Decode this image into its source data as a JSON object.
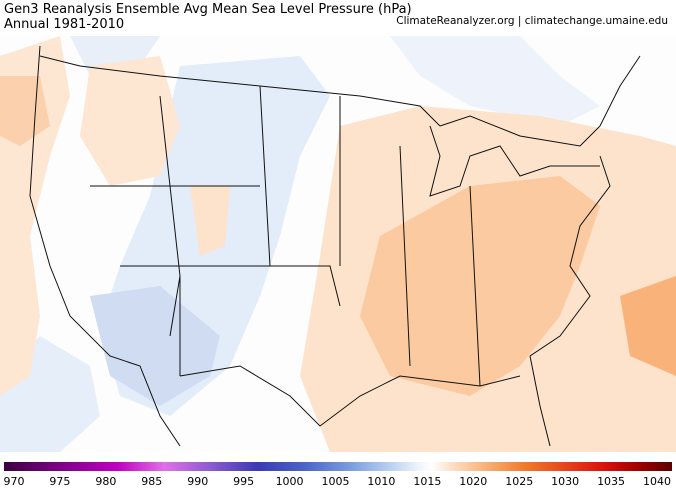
{
  "header": {
    "title": "Gen3 Reanalysis Ensemble Avg Mean Sea Level Pressure (hPa)",
    "subtitle": "Annual 1981-2010",
    "source": "ClimateReanalyzer.org | climatechange.umaine.edu"
  },
  "colorbar": {
    "ticks": [
      970,
      975,
      980,
      985,
      990,
      995,
      1000,
      1005,
      1010,
      1015,
      1020,
      1025,
      1030,
      1035,
      1040
    ]
  }
}
